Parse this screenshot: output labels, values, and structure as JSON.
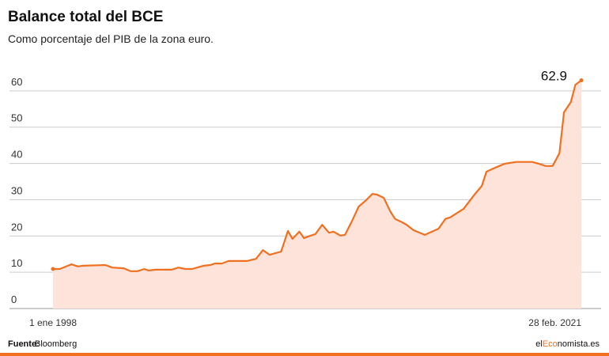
{
  "chart_data": {
    "type": "area",
    "title": "Balance total del BCE",
    "subtitle": "Como porcentaje del PIB de la zona euro.",
    "x": [
      1998.0,
      1998.3,
      1998.8,
      1999.1,
      1999.3,
      2000.3,
      2000.6,
      2001.1,
      2001.4,
      2001.7,
      2002.0,
      2002.2,
      2002.5,
      2003.2,
      2003.5,
      2003.8,
      2004.1,
      2004.6,
      2004.9,
      2005.1,
      2005.4,
      2005.7,
      2006.5,
      2006.9,
      2007.2,
      2007.5,
      2008.0,
      2008.3,
      2008.5,
      2008.8,
      2009.0,
      2009.3,
      2009.5,
      2009.8,
      2010.1,
      2010.3,
      2010.6,
      2010.8,
      2011.1,
      2011.4,
      2011.7,
      2012.0,
      2012.2,
      2012.5,
      2012.8,
      2013.0,
      2013.3,
      2013.5,
      2013.8,
      2014.3,
      2014.9,
      2015.2,
      2015.4,
      2016.0,
      2016.5,
      2016.8,
      2017.0,
      2017.3,
      2017.8,
      2018.3,
      2019.0,
      2019.3,
      2019.6,
      2019.9,
      2020.2,
      2020.4,
      2020.7,
      2020.9,
      2021.16
    ],
    "series": [
      {
        "name": "Balance total",
        "color": "#f07020",
        "fill": "#fde3da",
        "values": [
          10.9,
          10.9,
          12.2,
          11.6,
          11.8,
          12.0,
          11.3,
          11.1,
          10.3,
          10.3,
          10.9,
          10.5,
          10.7,
          10.7,
          11.3,
          10.9,
          10.9,
          11.8,
          12.0,
          12.4,
          12.4,
          13.1,
          13.1,
          13.7,
          16.1,
          14.8,
          15.7,
          21.4,
          19.2,
          21.2,
          19.4,
          20.1,
          20.5,
          23.1,
          20.9,
          21.2,
          20.1,
          20.3,
          24.0,
          28.1,
          29.7,
          31.6,
          31.4,
          30.5,
          26.6,
          24.7,
          23.8,
          23.1,
          21.6,
          20.3,
          22.0,
          24.7,
          25.1,
          27.5,
          31.6,
          33.8,
          37.7,
          38.6,
          39.9,
          40.4,
          40.4,
          39.9,
          39.3,
          39.3,
          42.8,
          54.1,
          56.9,
          61.7,
          62.9
        ]
      }
    ],
    "xlim": [
      1998.0,
      2021.16
    ],
    "xticks": [
      {
        "value": 1998.0,
        "label": "1 ene 1998"
      },
      {
        "value": 2021.16,
        "label": "28 feb. 2021"
      }
    ],
    "ylim": [
      0,
      70
    ],
    "yticks": [
      0,
      10,
      20,
      30,
      40,
      50,
      60
    ],
    "grid": true,
    "source": {
      "label": "Fuente:",
      "text": "Bloomberg"
    },
    "brand": [
      "el",
      "Eco",
      "nomista.es"
    ]
  }
}
